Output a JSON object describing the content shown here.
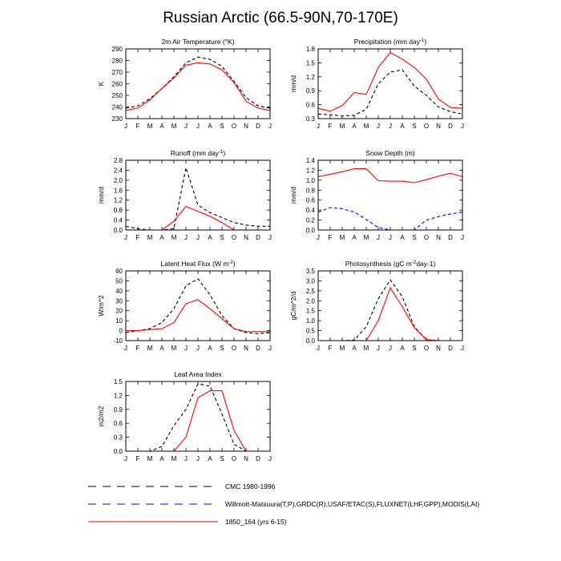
{
  "title": "Russian Arctic (66.5-90N,70-170E)",
  "months": [
    "J",
    "F",
    "M",
    "A",
    "M",
    "J",
    "J",
    "A",
    "S",
    "O",
    "N",
    "D",
    "J"
  ],
  "legend": [
    {
      "label": "CMC 1980-1996",
      "color": "#000000",
      "dash": "dashed"
    },
    {
      "label": "Willmott-Matsuura(T,P),GRDC(R),USAF/ETAC(S),FLUXNET(LHF,GPP),MODIS(LAI)",
      "color": "#0000ff",
      "dash": "dashed"
    },
    {
      "label": "1850_164 (yrs 6-15)",
      "color": "#ff0000",
      "dash": "solid"
    }
  ],
  "chart_data": [
    {
      "type": "line",
      "title": "2m Air Temperature (°K)",
      "ylabel": "K",
      "ylim": [
        230,
        290
      ],
      "yticks": [
        230,
        240,
        250,
        260,
        270,
        280,
        290
      ],
      "ytick_labels": [
        "230",
        "240",
        "250",
        "260",
        "270",
        "280",
        "290"
      ],
      "series": [
        {
          "color": "#000000",
          "dash": "dashed",
          "values": [
            239,
            241,
            247,
            256,
            266,
            278,
            283,
            281,
            275,
            262,
            248,
            241,
            239
          ]
        },
        {
          "color": "#ff0000",
          "dash": "solid",
          "values": [
            237,
            239,
            246,
            256,
            265,
            276,
            278,
            277,
            272,
            261,
            245,
            239,
            237
          ]
        }
      ]
    },
    {
      "type": "line",
      "title": "Precipitation (mm day-1)",
      "ylabel": "mm/d",
      "ylim": [
        0.3,
        1.8
      ],
      "yticks": [
        0.3,
        0.6,
        0.9,
        1.2,
        1.5,
        1.8
      ],
      "ytick_labels": [
        "0.3",
        "0.6",
        "0.9",
        "1.2",
        "1.5",
        "1.8"
      ],
      "series": [
        {
          "color": "#000000",
          "dash": "dashed",
          "values": [
            0.4,
            0.38,
            0.36,
            0.37,
            0.5,
            1.05,
            1.3,
            1.35,
            1.0,
            0.8,
            0.55,
            0.45,
            0.4
          ]
        },
        {
          "color": "#ff0000",
          "dash": "solid",
          "values": [
            0.52,
            0.46,
            0.58,
            0.86,
            0.82,
            1.4,
            1.72,
            1.58,
            1.4,
            1.15,
            0.72,
            0.54,
            0.52
          ]
        }
      ]
    },
    {
      "type": "line",
      "title": "Runoff (mm day-1)",
      "ylabel": "mm/d",
      "ylim": [
        0,
        2.8
      ],
      "yticks": [
        0,
        0.4,
        0.8,
        1.2,
        1.6,
        2.0,
        2.4,
        2.8
      ],
      "ytick_labels": [
        "0.0",
        "0.4",
        "0.8",
        "1.2",
        "1.6",
        "2.0",
        "2.4",
        "2.8"
      ],
      "series": [
        {
          "color": "#000000",
          "dash": "dashed",
          "values": [
            0.15,
            0.05,
            0.0,
            0.0,
            0.05,
            2.5,
            1.0,
            0.7,
            0.5,
            0.3,
            0.2,
            0.15,
            0.15
          ]
        },
        {
          "color": "#ff0000",
          "dash": "solid",
          "values": [
            null,
            null,
            null,
            0.0,
            0.35,
            0.95,
            0.75,
            0.55,
            0.3,
            0.0,
            null,
            null,
            null
          ]
        }
      ]
    },
    {
      "type": "line",
      "title": "Snow Depth (m)",
      "ylabel": "mm/d",
      "ylim": [
        0,
        1.4
      ],
      "yticks": [
        0,
        0.2,
        0.4,
        0.6,
        0.8,
        1.0,
        1.2,
        1.4
      ],
      "ytick_labels": [
        "0.0",
        "0.2",
        "0.4",
        "0.6",
        "0.8",
        "1.0",
        "1.2",
        "1.4"
      ],
      "series": [
        {
          "color": "#0000ff",
          "dash": "dashed",
          "values": [
            0.36,
            0.45,
            0.43,
            0.36,
            0.21,
            0.05,
            0.0,
            0.0,
            0.0,
            0.2,
            0.27,
            0.32,
            0.36
          ]
        },
        {
          "color": "#ff0000",
          "dash": "solid",
          "values": [
            1.07,
            1.12,
            1.17,
            1.23,
            1.23,
            0.99,
            0.98,
            0.98,
            0.95,
            1.01,
            1.08,
            1.14,
            1.07
          ]
        }
      ]
    },
    {
      "type": "line",
      "title": "Latent Heat Flux (W m-2)",
      "ylabel": "W/m^2",
      "ylim": [
        -10,
        60
      ],
      "yticks": [
        -10,
        0,
        10,
        20,
        30,
        40,
        50,
        60
      ],
      "ytick_labels": [
        "-10",
        "0",
        "10",
        "20",
        "30",
        "40",
        "50",
        "60"
      ],
      "series": [
        {
          "color": "#000000",
          "dash": "dashed",
          "values": [
            -2,
            0,
            2,
            8,
            22,
            45,
            52,
            36,
            15,
            2,
            -2,
            -3,
            -2
          ]
        },
        {
          "color": "#ff0000",
          "dash": "solid",
          "values": [
            0,
            0,
            1,
            2,
            8,
            27,
            31,
            22,
            12,
            2,
            -1,
            -1,
            -1
          ]
        }
      ]
    },
    {
      "type": "line",
      "title": "Photosynthesis (gC m-2day-1)",
      "ylabel": "gC/m^2/d",
      "ylim": [
        0,
        3.5
      ],
      "yticks": [
        0,
        0.5,
        1.0,
        1.5,
        2.0,
        2.5,
        3.0,
        3.5
      ],
      "ytick_labels": [
        "0.0",
        "0.5",
        "1.0",
        "1.5",
        "2.0",
        "2.5",
        "3.0",
        "3.5"
      ],
      "series": [
        {
          "color": "#000000",
          "dash": "dashed",
          "values": [
            0,
            0,
            0,
            0.02,
            0.7,
            2.1,
            3.05,
            2.2,
            0.7,
            0.05,
            0,
            0,
            0
          ]
        },
        {
          "color": "#ff0000",
          "dash": "solid",
          "values": [
            0,
            0,
            0,
            0,
            0,
            1.0,
            2.65,
            1.7,
            0.65,
            0.05,
            0,
            0,
            0
          ]
        }
      ]
    },
    {
      "type": "line",
      "title": "Leaf Area Index",
      "ylabel": "m2/m2",
      "ylim": [
        0,
        1.5
      ],
      "yticks": [
        0,
        0.3,
        0.6,
        0.9,
        1.2,
        1.5
      ],
      "ytick_labels": [
        "0.0",
        "0.3",
        "0.6",
        "0.9",
        "1.2",
        "1.5"
      ],
      "series": [
        {
          "color": "#000000",
          "dash": "dashed",
          "values": [
            0,
            0,
            0,
            0.1,
            0.55,
            0.9,
            1.45,
            1.4,
            0.8,
            0.15,
            0,
            0,
            0
          ]
        },
        {
          "color": "#ff0000",
          "dash": "solid",
          "values": [
            0,
            0,
            0,
            0,
            0,
            0.3,
            1.15,
            1.3,
            1.3,
            0.45,
            0,
            0,
            0
          ]
        }
      ]
    }
  ]
}
